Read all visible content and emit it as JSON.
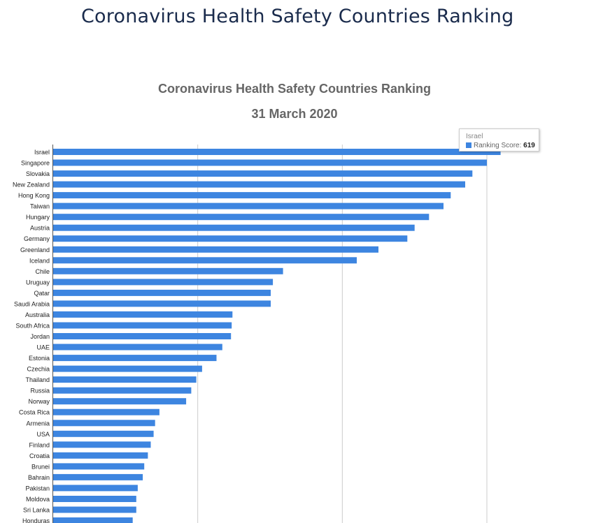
{
  "page": {
    "heading": "Coronavirus Health Safety Countries Ranking"
  },
  "chart_data": {
    "type": "bar",
    "orientation": "horizontal",
    "title": "Coronavirus Health Safety Countries Ranking",
    "subtitle": "31 March 2020",
    "xlim": [
      0,
      750
    ],
    "grid": true,
    "series": [
      {
        "name": "Ranking Score",
        "color": "#3d85e0",
        "values": [
          619,
          600,
          580,
          570,
          550,
          540,
          520,
          500,
          490,
          450,
          420,
          318,
          304,
          301,
          301,
          248,
          247,
          246,
          234,
          226,
          206,
          198,
          191,
          184,
          147,
          141,
          139,
          135,
          131,
          126,
          124,
          117,
          115,
          115,
          110
        ]
      }
    ],
    "categories": [
      "Israel",
      "Singapore",
      "Slovakia",
      "New Zealand",
      "Hong Kong",
      "Taiwan",
      "Hungary",
      "Austria",
      "Germany",
      "Greenland",
      "Iceland",
      "Chile",
      "Uruguay",
      "Qatar",
      "Saudi Arabia",
      "Australia",
      "South Africa",
      "Jordan",
      "UAE",
      "Estonia",
      "Czechia",
      "Thailand",
      "Russia",
      "Norway",
      "Costa Rica",
      "Armenia",
      "USA",
      "Finland",
      "Croatia",
      "Brunei",
      "Bahrain",
      "Pakistan",
      "Moldova",
      "Sri Lanka",
      "Honduras"
    ],
    "tooltip": {
      "category": "Israel",
      "label": "Ranking Score",
      "value": "619"
    }
  }
}
